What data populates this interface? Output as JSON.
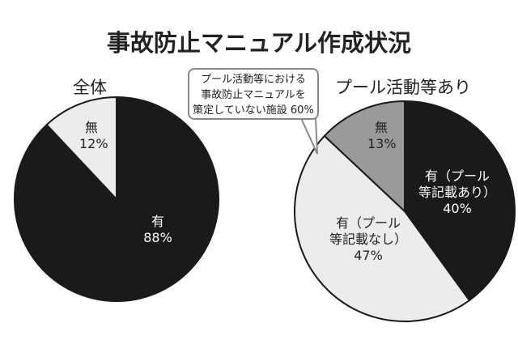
{
  "chart_data": [
    {
      "type": "pie",
      "title": "事故防止マニュアル作成状況",
      "subtitle": "全体",
      "slices": [
        {
          "label": "有",
          "value": 88,
          "value_label": "88%",
          "color": "#1a1a1a"
        },
        {
          "label": "無",
          "value": 12,
          "value_label": "12%",
          "color": "#ececec"
        }
      ]
    },
    {
      "type": "pie",
      "subtitle": "プール活動等あり",
      "slices": [
        {
          "label": "有（プール等記載あり）",
          "label_lines": [
            "有（プール",
            "等記載あり）"
          ],
          "value": 40,
          "value_label": "40%",
          "color": "#1a1a1a"
        },
        {
          "label": "有（プール等記載なし）",
          "label_lines": [
            "有（プール",
            "等記載なし）"
          ],
          "value": 47,
          "value_label": "47%",
          "color": "#ececec"
        },
        {
          "label": "無",
          "value": 13,
          "value_label": "13%",
          "color": "#9a9a9a"
        }
      ],
      "annotation": {
        "lines": [
          "プール活動等における",
          "事故防止マニュアルを",
          "策定していない施設 60%"
        ]
      }
    }
  ]
}
